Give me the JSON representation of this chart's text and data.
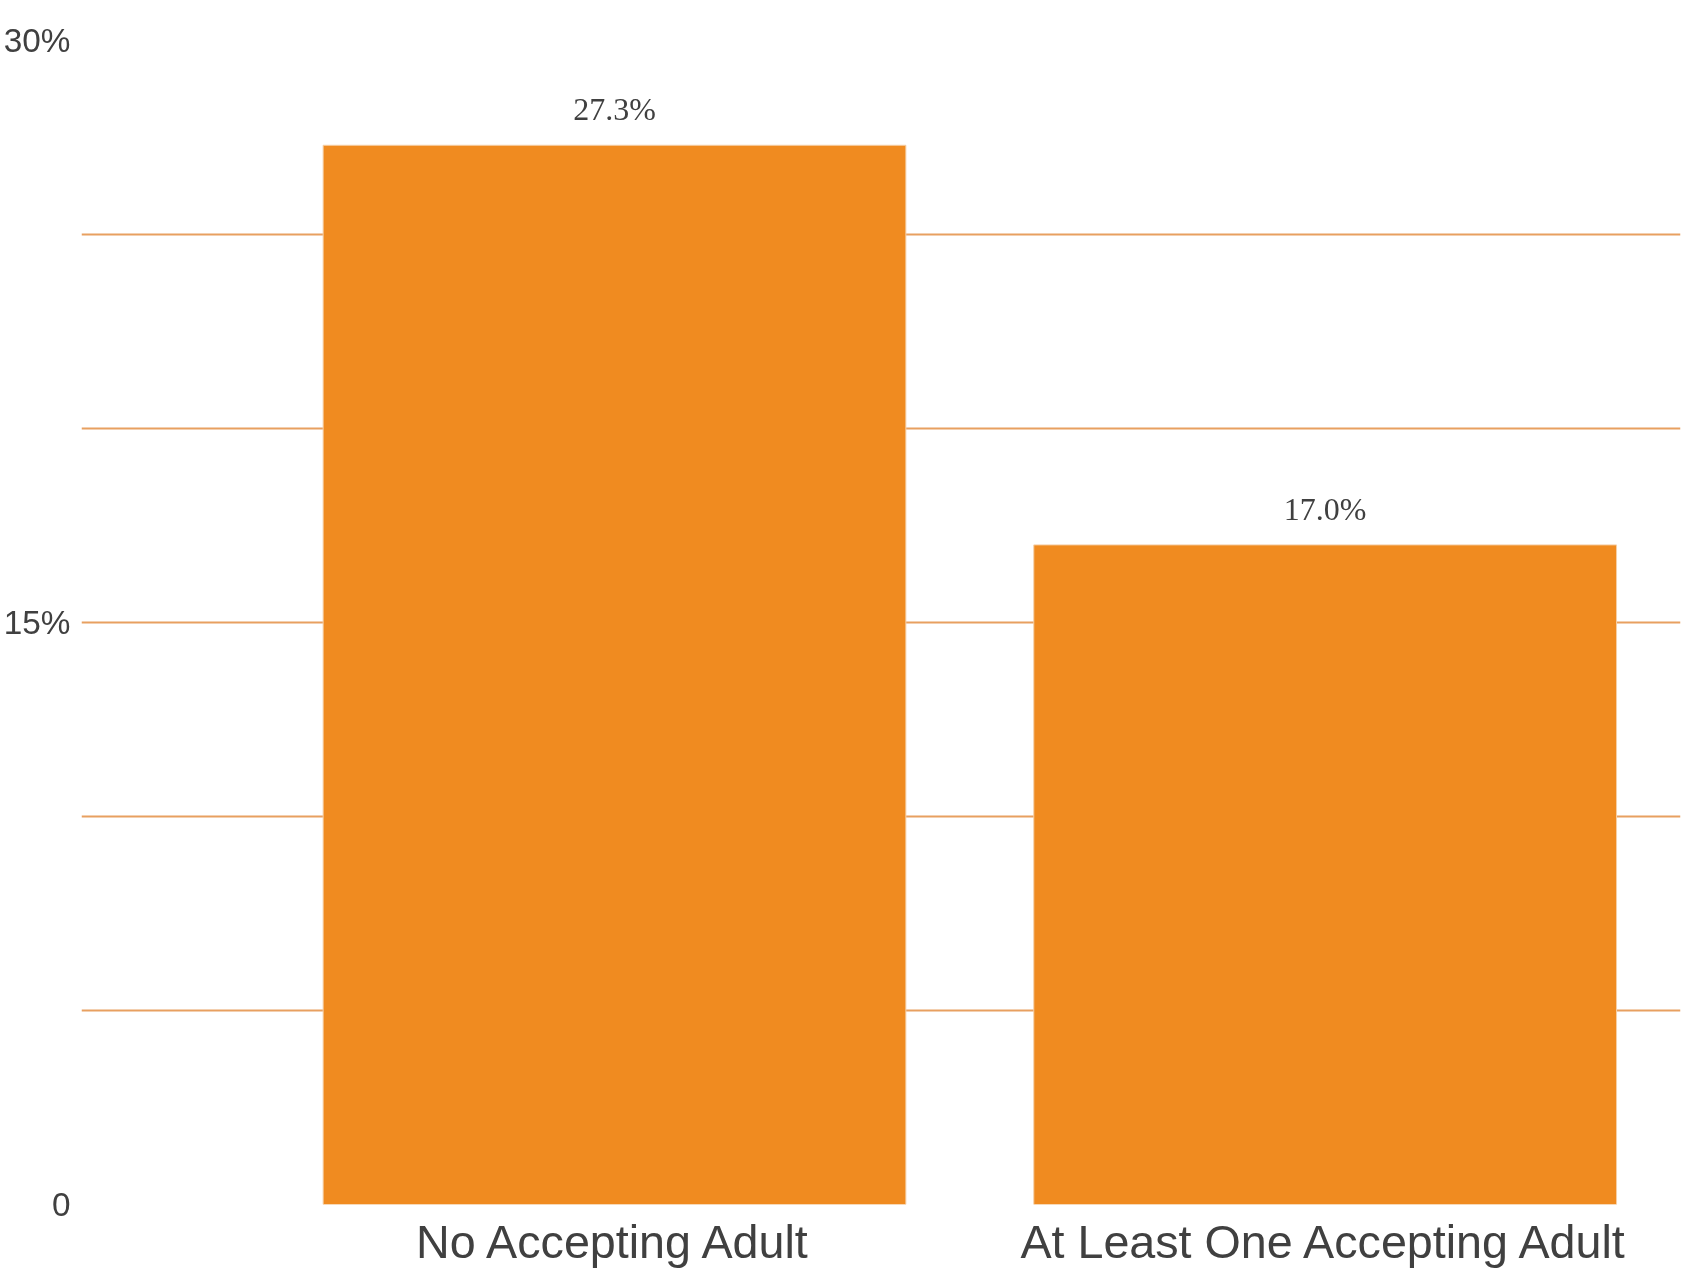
{
  "chart_data": {
    "type": "bar",
    "categories": [
      "No Accepting Adult",
      "At Least One Accepting Adult"
    ],
    "values": [
      27.3,
      17.0
    ],
    "value_labels": [
      "27.3%",
      "17.0%"
    ],
    "color": "#f08b20",
    "ylim": [
      0,
      30
    ],
    "yticks": [
      {
        "value": 0,
        "label": "0"
      },
      {
        "value": 5,
        "label": null
      },
      {
        "value": 10,
        "label": null
      },
      {
        "value": 15,
        "label": "15%"
      },
      {
        "value": 20,
        "label": null
      },
      {
        "value": 25,
        "label": null
      },
      {
        "value": 30,
        "label": "30%"
      }
    ],
    "grid": "y"
  }
}
